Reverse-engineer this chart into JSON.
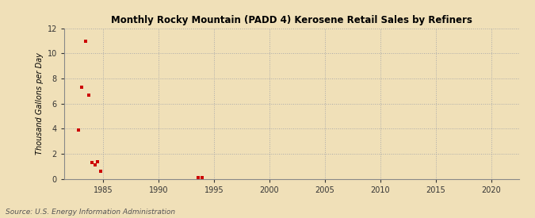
{
  "title": "Monthly Rocky Mountain (PADD 4) Kerosene Retail Sales by Refiners",
  "ylabel": "Thousand Gallons per Day",
  "source": "Source: U.S. Energy Information Administration",
  "background_color": "#f0e0b8",
  "plot_bg_color": "#f0e0b8",
  "data_color": "#cc0000",
  "xlim": [
    1981.5,
    2022.5
  ],
  "ylim": [
    0,
    12
  ],
  "yticks": [
    0,
    2,
    4,
    6,
    8,
    10,
    12
  ],
  "xticks": [
    1985,
    1990,
    1995,
    2000,
    2005,
    2010,
    2015,
    2020
  ],
  "scatter_x": [
    1982.8,
    1983.1,
    1983.4,
    1983.7,
    1984.0,
    1984.3,
    1984.5,
    1984.8,
    1993.6,
    1993.9
  ],
  "scatter_y": [
    3.9,
    7.3,
    11.0,
    6.7,
    1.3,
    1.1,
    1.35,
    0.6,
    0.08,
    0.08
  ]
}
